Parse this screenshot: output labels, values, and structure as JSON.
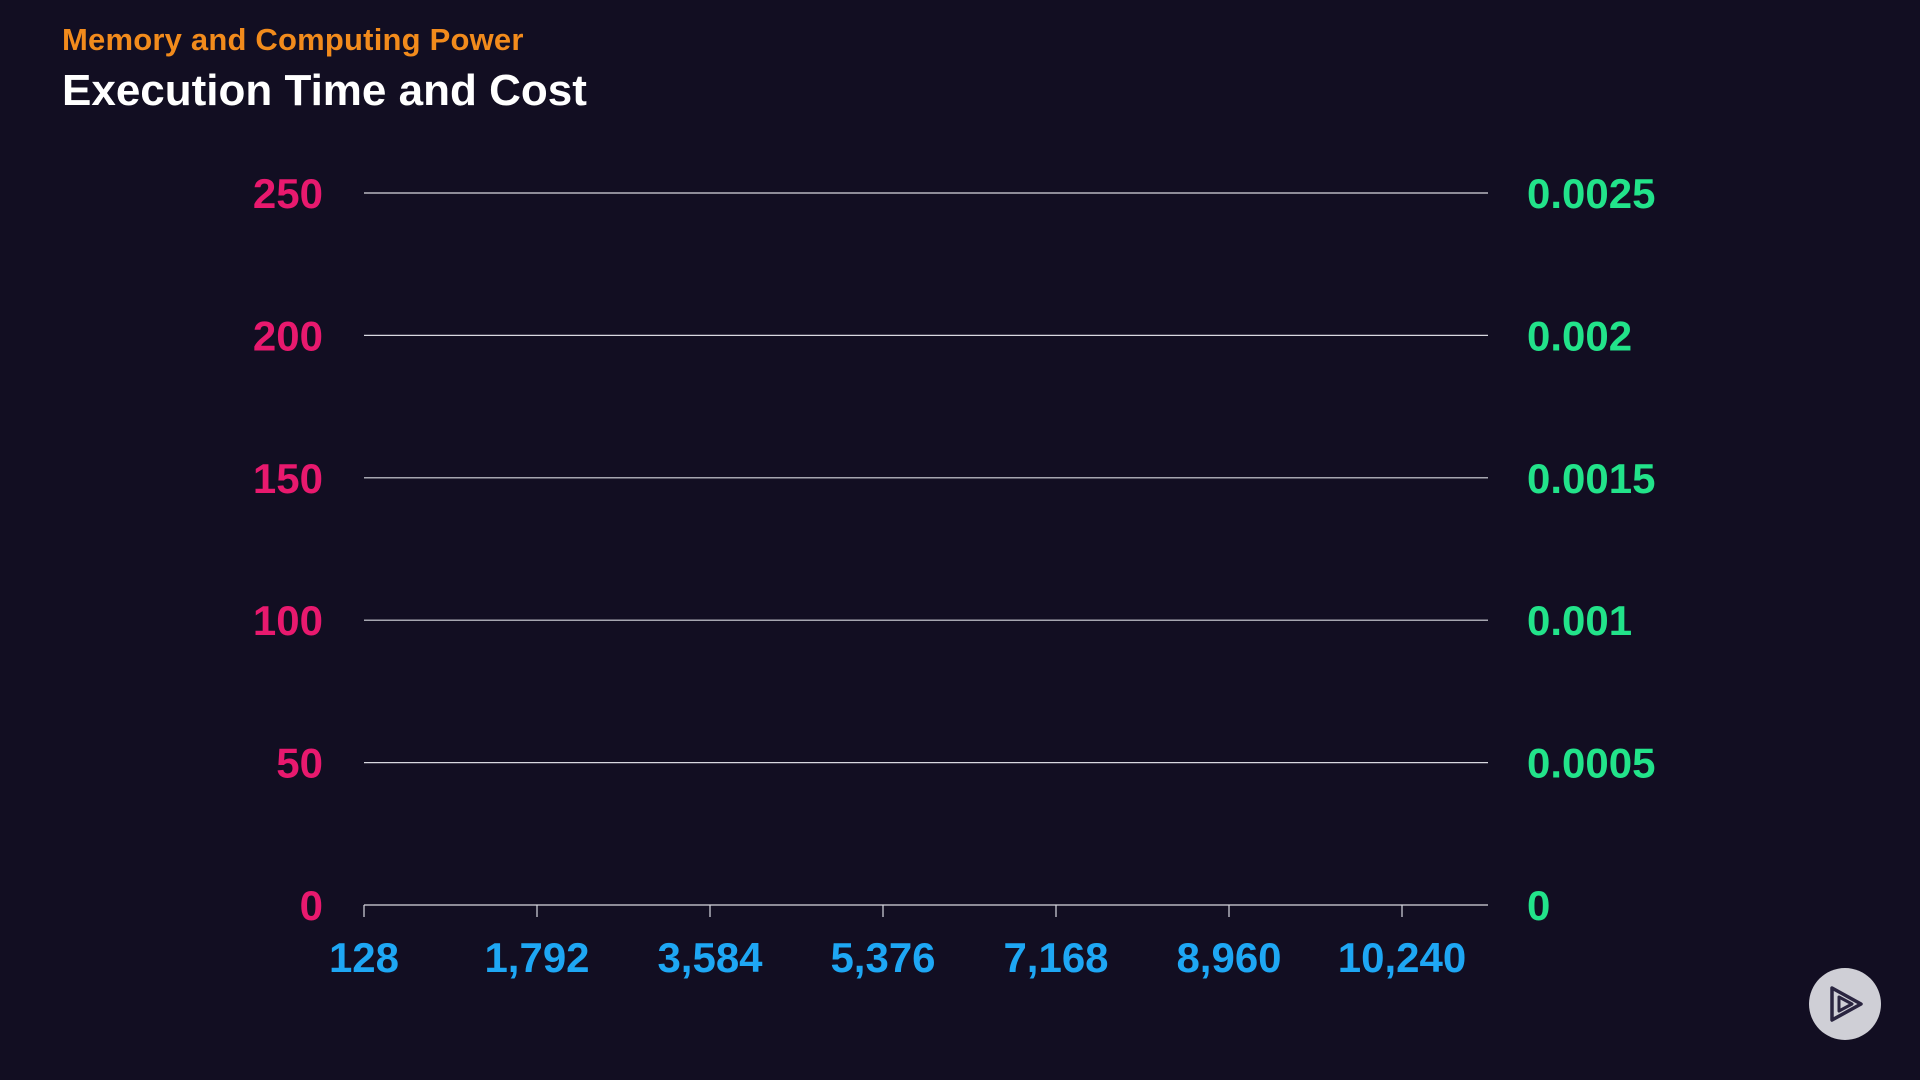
{
  "header": {
    "kicker": "Memory and Computing Power",
    "title": "Execution Time and Cost"
  },
  "colors": {
    "background": "#120e22",
    "kicker": "#f28b1c",
    "title": "#ffffff",
    "left_axis": "#e8196e",
    "right_axis": "#22e38a",
    "x_axis": "#1ea7f4",
    "gridline": "#d8d8e0",
    "play_button": "#cfcfd6",
    "play_icon": "#2a2540"
  },
  "play_button": {
    "icon": "play-logo-icon"
  },
  "chart_data": {
    "type": "line",
    "title": "Execution Time and Cost",
    "xlabel": "",
    "ylabel": "",
    "categories": [
      "128",
      "1,792",
      "3,584",
      "5,376",
      "7,168",
      "8,960",
      "10,240"
    ],
    "series": [],
    "y_left": {
      "ticks": [
        "0",
        "50",
        "100",
        "150",
        "200",
        "250"
      ],
      "range": [
        0,
        250
      ]
    },
    "y_right": {
      "ticks": [
        "0",
        "0.0005",
        "0.001",
        "0.0015",
        "0.002",
        "0.0025"
      ],
      "range": [
        0,
        0.0025
      ]
    },
    "grid": true,
    "legend": "none"
  }
}
